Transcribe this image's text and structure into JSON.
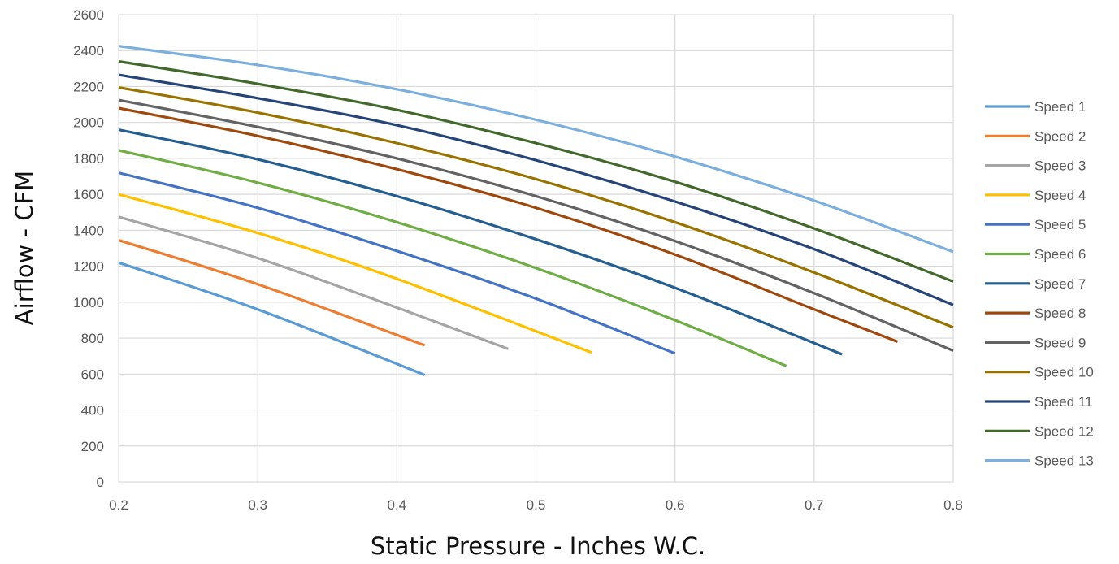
{
  "chart_data": {
    "type": "line",
    "title": "",
    "xlabel": "Static Pressure - Inches W.C.",
    "ylabel": "Airflow - CFM",
    "xlim": [
      0.2,
      0.8
    ],
    "ylim": [
      0,
      2600
    ],
    "x_ticks": [
      "0.2",
      "0.3",
      "0.4",
      "0.5",
      "0.6",
      "0.7",
      "0.8"
    ],
    "y_ticks": [
      "0",
      "200",
      "400",
      "600",
      "800",
      "1000",
      "1200",
      "1400",
      "1600",
      "1800",
      "2000",
      "2200",
      "2400",
      "2600"
    ],
    "grid": true,
    "legend_position": "right",
    "series": [
      {
        "name": "Speed 1",
        "color": "#5b9bd5",
        "x": [
          0.2,
          0.3,
          0.42
        ],
        "y": [
          1220,
          960,
          595
        ]
      },
      {
        "name": "Speed 2",
        "color": "#ed7d31",
        "x": [
          0.2,
          0.3,
          0.42
        ],
        "y": [
          1345,
          1100,
          760
        ]
      },
      {
        "name": "Speed 3",
        "color": "#a5a5a5",
        "x": [
          0.2,
          0.3,
          0.4,
          0.48
        ],
        "y": [
          1475,
          1245,
          970,
          740
        ]
      },
      {
        "name": "Speed 4",
        "color": "#ffc000",
        "x": [
          0.2,
          0.3,
          0.4,
          0.54
        ],
        "y": [
          1600,
          1385,
          1130,
          720
        ]
      },
      {
        "name": "Speed 5",
        "color": "#4472c4",
        "x": [
          0.2,
          0.3,
          0.4,
          0.5,
          0.6
        ],
        "y": [
          1720,
          1525,
          1285,
          1020,
          715
        ]
      },
      {
        "name": "Speed 6",
        "color": "#70ad47",
        "x": [
          0.2,
          0.3,
          0.4,
          0.5,
          0.6,
          0.68
        ],
        "y": [
          1845,
          1665,
          1445,
          1190,
          900,
          645
        ]
      },
      {
        "name": "Speed 7",
        "color": "#255e91",
        "x": [
          0.2,
          0.3,
          0.4,
          0.5,
          0.6,
          0.72
        ],
        "y": [
          1960,
          1795,
          1590,
          1350,
          1080,
          710
        ]
      },
      {
        "name": "Speed 8",
        "color": "#9e480e",
        "x": [
          0.2,
          0.3,
          0.4,
          0.5,
          0.6,
          0.7,
          0.76
        ],
        "y": [
          2080,
          1925,
          1740,
          1525,
          1265,
          960,
          780
        ]
      },
      {
        "name": "Speed 9",
        "color": "#636363",
        "x": [
          0.2,
          0.3,
          0.4,
          0.5,
          0.6,
          0.7,
          0.8
        ],
        "y": [
          2125,
          1975,
          1800,
          1590,
          1340,
          1050,
          730
        ]
      },
      {
        "name": "Speed 10",
        "color": "#997300",
        "x": [
          0.2,
          0.3,
          0.4,
          0.5,
          0.6,
          0.7,
          0.8
        ],
        "y": [
          2195,
          2055,
          1885,
          1685,
          1445,
          1165,
          860
        ]
      },
      {
        "name": "Speed 11",
        "color": "#264478",
        "x": [
          0.2,
          0.3,
          0.4,
          0.5,
          0.6,
          0.7,
          0.8
        ],
        "y": [
          2265,
          2135,
          1985,
          1790,
          1560,
          1295,
          985
        ]
      },
      {
        "name": "Speed 12",
        "color": "#43682b",
        "x": [
          0.2,
          0.3,
          0.4,
          0.5,
          0.6,
          0.7,
          0.8
        ],
        "y": [
          2340,
          2215,
          2070,
          1885,
          1670,
          1410,
          1115
        ]
      },
      {
        "name": "Speed 13",
        "color": "#7cafdd",
        "x": [
          0.2,
          0.3,
          0.4,
          0.5,
          0.6,
          0.7,
          0.8
        ],
        "y": [
          2425,
          2320,
          2185,
          2015,
          1810,
          1565,
          1280
        ]
      }
    ]
  }
}
